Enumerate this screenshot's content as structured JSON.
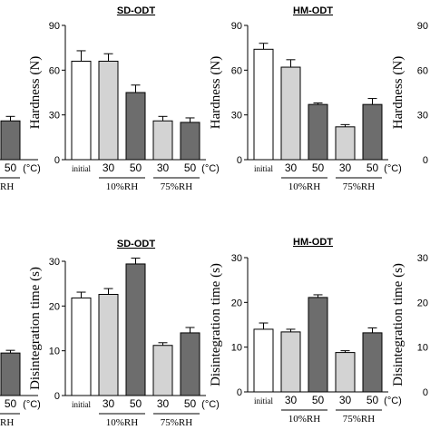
{
  "chart_data": [
    {
      "type": "bar",
      "panel": "top-left (cropped)",
      "title": "",
      "ylabel": "",
      "x_labels": [
        "50",
        "(°C)"
      ],
      "group_labels": [
        "RH"
      ],
      "categories": [
        "50 (75%RH)"
      ],
      "values": [
        26
      ],
      "errors": [
        3
      ],
      "colors": [
        "#6d6d6d"
      ]
    },
    {
      "type": "bar",
      "panel": "top-center",
      "title": "SD-ODT",
      "ylabel": "Hardness (N)",
      "ylim": [
        0,
        90
      ],
      "yticks": [
        "0",
        "30",
        "60",
        "90"
      ],
      "categories": [
        "initial",
        "30",
        "50",
        "30",
        "50"
      ],
      "unit_label": "(°C)",
      "groups": [
        {
          "label": "10%RH",
          "members": [
            "30",
            "50"
          ]
        },
        {
          "label": "75%RH",
          "members": [
            "30",
            "50"
          ]
        }
      ],
      "values": [
        66,
        66,
        45,
        26,
        25
      ],
      "errors": [
        7,
        5,
        5,
        3,
        3
      ],
      "colors": [
        "#ffffff",
        "#d3d3d3",
        "#6d6d6d",
        "#d3d3d3",
        "#6d6d6d"
      ]
    },
    {
      "type": "bar",
      "panel": "top-right",
      "title": "HM-ODT",
      "ylabel": "Hardness (N)",
      "ylim": [
        0,
        90
      ],
      "yticks": [
        "0",
        "30",
        "60",
        "90"
      ],
      "categories": [
        "initial",
        "30",
        "50",
        "30",
        "50"
      ],
      "unit_label": "(°C)",
      "groups": [
        {
          "label": "10%RH",
          "members": [
            "30",
            "50"
          ]
        },
        {
          "label": "75%RH",
          "members": [
            "30",
            "50"
          ]
        }
      ],
      "values": [
        74,
        62,
        37,
        22,
        37
      ],
      "errors": [
        4,
        5,
        1,
        1.5,
        4
      ],
      "colors": [
        "#ffffff",
        "#d3d3d3",
        "#6d6d6d",
        "#d3d3d3",
        "#6d6d6d"
      ]
    },
    {
      "type": "bar",
      "panel": "top-far-right (cropped)",
      "ylabel": "Hardness (N)",
      "yticks": [
        "0",
        "30",
        "60",
        "90"
      ]
    },
    {
      "type": "bar",
      "panel": "bottom-left (cropped)",
      "title": "",
      "ylabel": "",
      "x_labels": [
        "50",
        "(°C)"
      ],
      "group_labels": [
        "RH"
      ],
      "categories": [
        "50 (75%RH)"
      ],
      "values": [
        9.5
      ],
      "errors": [
        0.6
      ],
      "colors": [
        "#6d6d6d"
      ]
    },
    {
      "type": "bar",
      "panel": "bottom-center",
      "title": "SD-ODT",
      "ylabel": "Disintegration time (s)",
      "ylim": [
        0,
        30
      ],
      "yticks": [
        "0",
        "10",
        "20",
        "30"
      ],
      "categories": [
        "initial",
        "30",
        "50",
        "30",
        "50"
      ],
      "unit_label": "(°C)",
      "groups": [
        {
          "label": "10%RH",
          "members": [
            "30",
            "50"
          ]
        },
        {
          "label": "75%RH",
          "members": [
            "30",
            "50"
          ]
        }
      ],
      "values": [
        21.8,
        22.6,
        29.4,
        11.2,
        14
      ],
      "errors": [
        1.3,
        1.3,
        1.3,
        0.6,
        1.2
      ],
      "colors": [
        "#ffffff",
        "#d3d3d3",
        "#6d6d6d",
        "#d3d3d3",
        "#6d6d6d"
      ]
    },
    {
      "type": "bar",
      "panel": "bottom-right",
      "title": "HM-ODT",
      "ylabel": "Disintegration time (s)",
      "ylim": [
        0,
        30
      ],
      "yticks": [
        "0",
        "10",
        "20",
        "30"
      ],
      "categories": [
        "initial",
        "30",
        "50",
        "30",
        "50"
      ],
      "unit_label": "(°C)",
      "groups": [
        {
          "label": "10%RH",
          "members": [
            "30",
            "50"
          ]
        },
        {
          "label": "75%RH",
          "members": [
            "30",
            "50"
          ]
        }
      ],
      "values": [
        14,
        13.4,
        21.1,
        8.8,
        13.2
      ],
      "errors": [
        1.4,
        0.6,
        0.6,
        0.4,
        1.1
      ],
      "colors": [
        "#ffffff",
        "#d3d3d3",
        "#6d6d6d",
        "#d3d3d3",
        "#6d6d6d"
      ]
    },
    {
      "type": "bar",
      "panel": "bottom-far-right (cropped)",
      "ylabel": "Disintegration time (s)",
      "yticks": [
        "0",
        "10",
        "20",
        "30"
      ]
    }
  ]
}
